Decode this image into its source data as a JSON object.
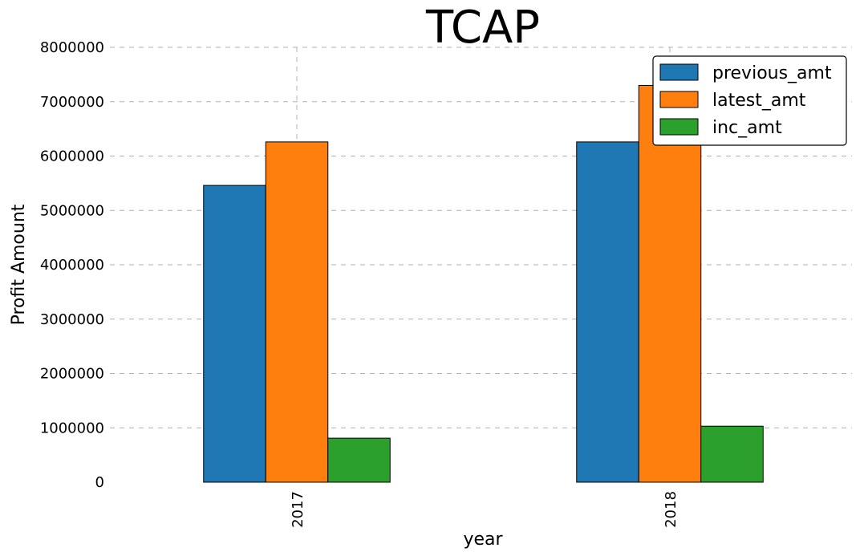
{
  "chart_data": {
    "type": "bar",
    "title": "TCAP",
    "xlabel": "year",
    "ylabel": "Profit Amount",
    "categories": [
      "2017",
      "2018"
    ],
    "series": [
      {
        "name": "previous_amt",
        "color": "#1f77b4",
        "values": [
          5460000,
          6260000
        ]
      },
      {
        "name": "latest_amt",
        "color": "#ff7f0e",
        "values": [
          6260000,
          7300000
        ]
      },
      {
        "name": "inc_amt",
        "color": "#2ca02c",
        "values": [
          810000,
          1030000
        ]
      }
    ],
    "ylim": [
      0,
      8000000
    ],
    "yticks": [
      "0",
      "1000000",
      "2000000",
      "3000000",
      "4000000",
      "5000000",
      "6000000",
      "7000000",
      "8000000"
    ],
    "grid": true,
    "legend_position": "top-right"
  }
}
